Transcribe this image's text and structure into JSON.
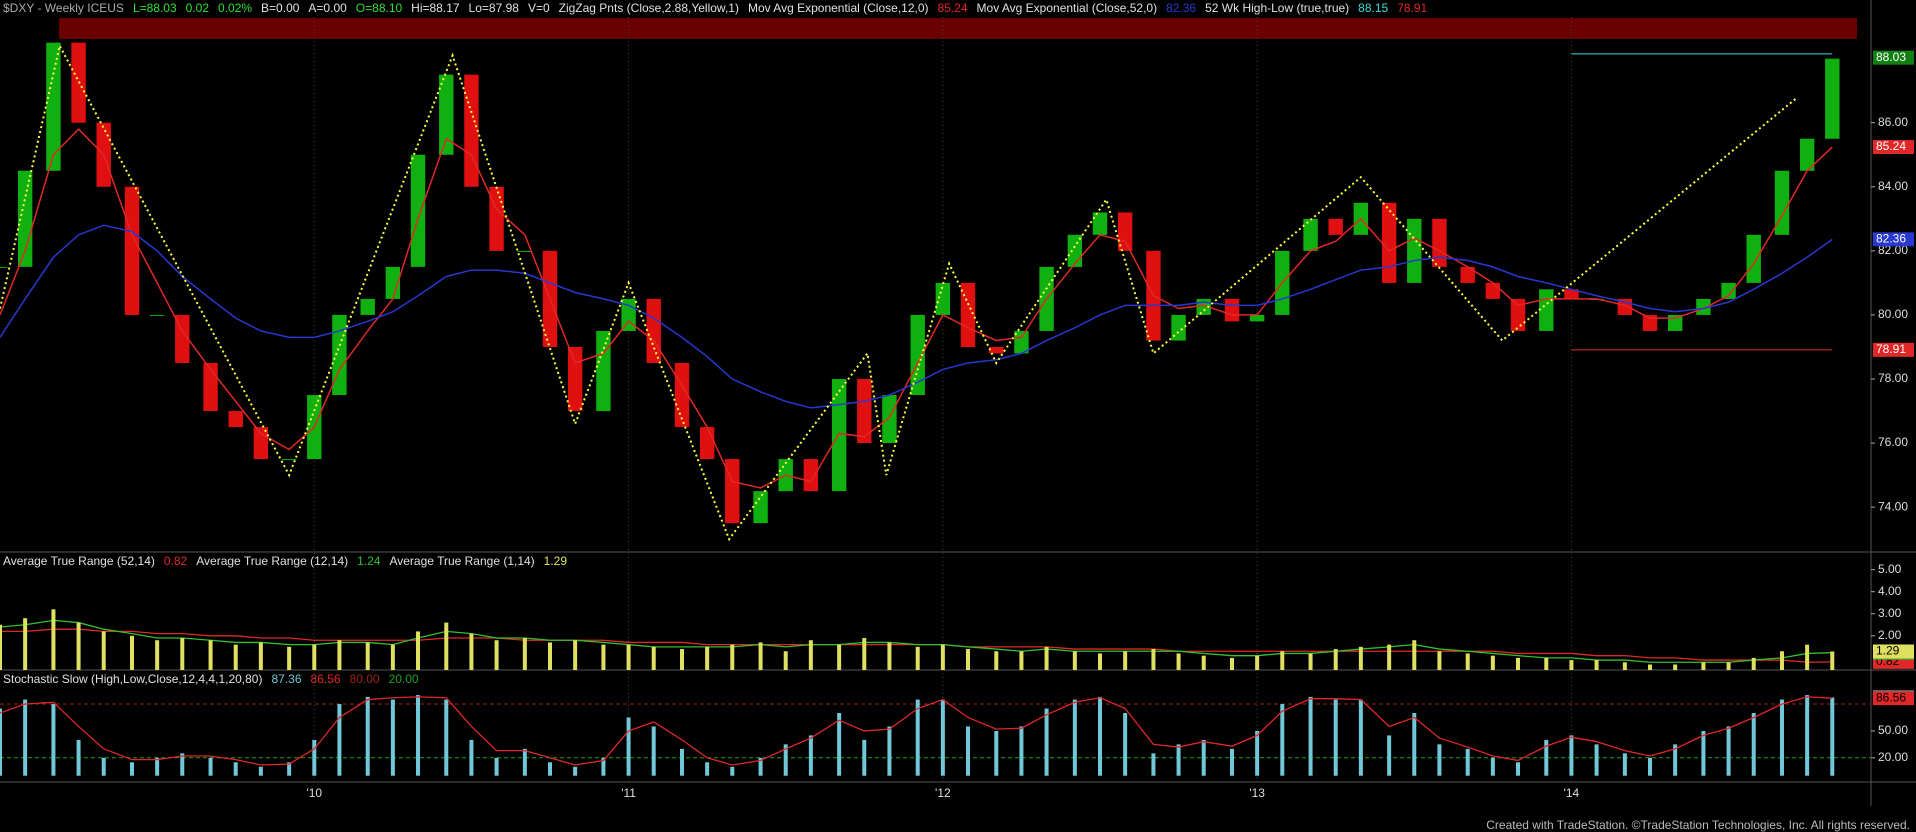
{
  "chart_data": [
    {
      "type": "candlestick",
      "title": "$DXY - Weekly ICEUS",
      "quote": [
        {
          "text": "L=88.03",
          "color": "#30e030"
        },
        {
          "text": "0.02",
          "color": "#30e030"
        },
        {
          "text": "0.02%",
          "color": "#30e030"
        },
        {
          "text": "B=0.00",
          "color": "#e0e0e0"
        },
        {
          "text": "A=0.00",
          "color": "#e0e0e0"
        },
        {
          "text": "O=88.10",
          "color": "#30e030"
        },
        {
          "text": "Hi=88.17",
          "color": "#e0e0e0"
        },
        {
          "text": "Lo=87.98",
          "color": "#e0e0e0"
        },
        {
          "text": "V=0",
          "color": "#e0e0e0"
        }
      ],
      "x": [
        2009.0,
        2009.08,
        2009.17,
        2009.25,
        2009.33,
        2009.42,
        2009.5,
        2009.58,
        2009.67,
        2009.75,
        2009.83,
        2009.92,
        2010.0,
        2010.08,
        2010.17,
        2010.25,
        2010.33,
        2010.42,
        2010.5,
        2010.58,
        2010.67,
        2010.75,
        2010.83,
        2010.92,
        2011.0,
        2011.08,
        2011.17,
        2011.25,
        2011.33,
        2011.42,
        2011.5,
        2011.58,
        2011.67,
        2011.75,
        2011.83,
        2011.92,
        2012.0,
        2012.08,
        2012.17,
        2012.25,
        2012.33,
        2012.42,
        2012.5,
        2012.58,
        2012.67,
        2012.75,
        2012.83,
        2012.92,
        2013.0,
        2013.08,
        2013.17,
        2013.25,
        2013.33,
        2013.42,
        2013.5,
        2013.58,
        2013.67,
        2013.75,
        2013.83,
        2013.92,
        2014.0,
        2014.08,
        2014.17,
        2014.25,
        2014.33,
        2014.42,
        2014.5,
        2014.58,
        2014.67,
        2014.75,
        2014.83
      ],
      "values": [
        81.5,
        84.5,
        88.5,
        86.0,
        84.0,
        80.0,
        80.0,
        78.5,
        77.0,
        76.5,
        75.5,
        75.5,
        77.5,
        80.0,
        80.5,
        81.5,
        85.0,
        87.5,
        84.0,
        82.0,
        82.0,
        79.0,
        77.0,
        79.5,
        80.5,
        78.5,
        76.5,
        75.5,
        73.5,
        74.5,
        75.5,
        74.5,
        78.0,
        76.0,
        77.5,
        80.0,
        81.0,
        79.0,
        78.8,
        79.5,
        81.5,
        82.5,
        83.2,
        82.0,
        79.2,
        80.0,
        80.5,
        79.8,
        80.0,
        82.0,
        83.0,
        82.5,
        83.5,
        81.0,
        83.0,
        81.5,
        81.0,
        80.5,
        79.5,
        80.8,
        80.5,
        80.5,
        80.0,
        79.5,
        80.0,
        80.5,
        81.0,
        82.5,
        84.5,
        85.5,
        88.0
      ],
      "last": 88.03,
      "up_color": "#10b010",
      "down_color": "#e01010",
      "zigzag": {
        "name": "ZigZag Pnts (Close,2.88,Yellow,1)",
        "color": "#ffff40",
        "x": [
          2009.0,
          2009.19,
          2009.92,
          2010.44,
          2010.83,
          2011.0,
          2011.32,
          2011.76,
          2011.82,
          2012.02,
          2012.17,
          2012.52,
          2012.67,
          2013.33,
          2013.78,
          2014.72
        ],
        "values": [
          80.2,
          88.4,
          75.0,
          88.1,
          76.6,
          81.0,
          73.0,
          78.8,
          75.0,
          81.6,
          78.5,
          83.6,
          78.8,
          84.3,
          79.2,
          86.8
        ]
      },
      "series": [
        {
          "name": "Mov Avg Exponential (Close,12,0)",
          "color": "#e02828",
          "last": 85.24,
          "values": [
            80.0,
            82.0,
            85.0,
            85.8,
            85.0,
            82.5,
            81.0,
            79.5,
            78.3,
            77.3,
            76.3,
            75.8,
            76.5,
            78.3,
            79.5,
            80.5,
            83.0,
            85.5,
            85.0,
            83.3,
            82.5,
            80.5,
            78.5,
            78.8,
            79.8,
            79.2,
            77.8,
            76.5,
            74.8,
            74.6,
            75.0,
            74.8,
            76.3,
            76.2,
            76.8,
            78.5,
            80.0,
            79.6,
            79.2,
            79.3,
            80.5,
            81.6,
            82.5,
            82.3,
            80.6,
            80.2,
            80.3,
            80.0,
            80.0,
            81.0,
            82.0,
            82.3,
            83.0,
            82.0,
            82.4,
            82.0,
            81.5,
            81.0,
            80.3,
            80.5,
            80.5,
            80.5,
            80.3,
            79.9,
            79.9,
            80.2,
            80.6,
            81.6,
            83.1,
            84.5,
            85.24
          ]
        },
        {
          "name": "Mov Avg Exponential (Close,52,0)",
          "color": "#2838d0",
          "last": 82.36,
          "values": [
            79.3,
            80.5,
            81.8,
            82.5,
            82.8,
            82.6,
            82.0,
            81.2,
            80.5,
            79.9,
            79.5,
            79.3,
            79.3,
            79.5,
            79.8,
            80.1,
            80.6,
            81.2,
            81.4,
            81.4,
            81.3,
            81.0,
            80.7,
            80.5,
            80.3,
            79.9,
            79.3,
            78.7,
            78.0,
            77.6,
            77.3,
            77.1,
            77.2,
            77.3,
            77.5,
            77.9,
            78.3,
            78.5,
            78.6,
            78.8,
            79.2,
            79.6,
            80.0,
            80.3,
            80.3,
            80.3,
            80.4,
            80.3,
            80.3,
            80.5,
            80.8,
            81.1,
            81.4,
            81.5,
            81.7,
            81.8,
            81.7,
            81.5,
            81.2,
            81.0,
            80.8,
            80.6,
            80.4,
            80.2,
            80.1,
            80.2,
            80.4,
            80.8,
            81.3,
            81.8,
            82.36
          ]
        }
      ],
      "high_low": {
        "name": "52 Wk High-Low (true,true)",
        "values": [
          88.15,
          78.91
        ],
        "colors": [
          "#40d8d8",
          "#e02828"
        ]
      },
      "xlim": [
        2009.0,
        2014.95
      ],
      "xticks": [
        {
          "value": 2010,
          "label": "'10"
        },
        {
          "value": 2011,
          "label": "'11"
        },
        {
          "value": 2012,
          "label": "'12"
        },
        {
          "value": 2013,
          "label": "'13"
        },
        {
          "value": 2014,
          "label": "'14"
        }
      ],
      "ylim": [
        72.6,
        89.3
      ],
      "yticks": [
        {
          "value": 74,
          "label": "74.00"
        },
        {
          "value": 76,
          "label": "76.00"
        },
        {
          "value": 78,
          "label": "78.00"
        },
        {
          "value": 80,
          "label": "80.00"
        },
        {
          "value": 82,
          "label": "82.00"
        },
        {
          "value": 84,
          "label": "84.00"
        },
        {
          "value": 86,
          "label": "86.00"
        }
      ]
    },
    {
      "type": "bar",
      "series": [
        {
          "name": "Average True Range (52,14)",
          "kind": "line",
          "color": "#e02828",
          "last": 0.82,
          "values": [
            2.2,
            2.2,
            2.3,
            2.3,
            2.2,
            2.2,
            2.1,
            2.1,
            2.0,
            2.0,
            1.9,
            1.9,
            1.8,
            1.8,
            1.8,
            1.8,
            1.8,
            1.9,
            1.9,
            1.9,
            1.8,
            1.8,
            1.8,
            1.8,
            1.7,
            1.7,
            1.7,
            1.6,
            1.6,
            1.6,
            1.6,
            1.6,
            1.6,
            1.6,
            1.6,
            1.6,
            1.6,
            1.5,
            1.5,
            1.5,
            1.5,
            1.4,
            1.4,
            1.4,
            1.4,
            1.3,
            1.3,
            1.3,
            1.3,
            1.3,
            1.3,
            1.3,
            1.3,
            1.3,
            1.3,
            1.3,
            1.3,
            1.3,
            1.2,
            1.2,
            1.2,
            1.1,
            1.1,
            1.0,
            1.0,
            0.9,
            0.9,
            0.9,
            0.9,
            0.8,
            0.82
          ]
        },
        {
          "name": "Average True Range (12,14)",
          "kind": "line",
          "color": "#30c030",
          "last": 1.24,
          "values": [
            2.4,
            2.5,
            2.7,
            2.6,
            2.3,
            2.1,
            1.9,
            1.9,
            1.8,
            1.7,
            1.7,
            1.6,
            1.6,
            1.7,
            1.7,
            1.6,
            1.9,
            2.2,
            2.1,
            1.9,
            1.9,
            1.8,
            1.8,
            1.7,
            1.6,
            1.5,
            1.5,
            1.5,
            1.5,
            1.6,
            1.5,
            1.6,
            1.6,
            1.7,
            1.7,
            1.6,
            1.6,
            1.5,
            1.4,
            1.3,
            1.4,
            1.3,
            1.3,
            1.3,
            1.3,
            1.3,
            1.2,
            1.1,
            1.1,
            1.2,
            1.2,
            1.3,
            1.4,
            1.5,
            1.6,
            1.4,
            1.3,
            1.2,
            1.1,
            1.0,
            1.0,
            0.9,
            0.9,
            0.8,
            0.8,
            0.8,
            0.8,
            0.9,
            1.0,
            1.2,
            1.24
          ]
        },
        {
          "name": "Average True Range (1,14)",
          "kind": "bar",
          "color": "#e0e060",
          "last": 1.29,
          "values": [
            2.5,
            2.8,
            3.2,
            2.6,
            2.2,
            2.0,
            1.8,
            1.9,
            1.8,
            1.6,
            1.7,
            1.5,
            1.6,
            1.8,
            1.7,
            1.6,
            2.2,
            2.6,
            2.1,
            1.8,
            1.9,
            1.7,
            1.8,
            1.6,
            1.6,
            1.5,
            1.4,
            1.5,
            1.6,
            1.7,
            1.3,
            1.8,
            1.6,
            1.9,
            1.7,
            1.5,
            1.6,
            1.4,
            1.3,
            1.3,
            1.5,
            1.3,
            1.2,
            1.3,
            1.4,
            1.2,
            1.1,
            1.0,
            1.1,
            1.3,
            1.2,
            1.4,
            1.5,
            1.6,
            1.8,
            1.3,
            1.2,
            1.1,
            1.0,
            1.0,
            0.9,
            0.9,
            0.8,
            0.7,
            0.7,
            0.8,
            0.8,
            1.0,
            1.3,
            1.6,
            1.29
          ]
        }
      ],
      "ylim": [
        0.45,
        5.8
      ],
      "yticks": [
        {
          "value": 2,
          "label": "2.00"
        },
        {
          "value": 3,
          "label": "3.00"
        },
        {
          "value": 4,
          "label": "4.00"
        },
        {
          "value": 5,
          "label": "5.00"
        }
      ]
    },
    {
      "type": "bar",
      "title": "Stochastic Slow (High,Low,Close,12,4,4,1,20,80)",
      "series": [
        {
          "kind": "bar",
          "color": "#70c8d8",
          "last": 87.36,
          "values": [
            75,
            85,
            80,
            40,
            20,
            15,
            20,
            25,
            20,
            15,
            10,
            15,
            40,
            80,
            88,
            85,
            90,
            85,
            40,
            20,
            30,
            15,
            10,
            20,
            65,
            55,
            30,
            15,
            10,
            20,
            35,
            45,
            70,
            40,
            55,
            85,
            85,
            55,
            50,
            55,
            75,
            85,
            88,
            70,
            25,
            35,
            40,
            30,
            50,
            80,
            88,
            85,
            85,
            45,
            70,
            35,
            30,
            20,
            15,
            40,
            45,
            35,
            25,
            20,
            35,
            50,
            55,
            70,
            85,
            90,
            87.36
          ]
        },
        {
          "kind": "line",
          "color": "#e02828",
          "last": 86.56,
          "values": [
            70,
            80,
            82,
            55,
            30,
            18,
            18,
            22,
            22,
            18,
            12,
            13,
            30,
            65,
            85,
            87,
            88,
            87,
            55,
            28,
            28,
            20,
            12,
            17,
            50,
            60,
            40,
            20,
            12,
            17,
            30,
            42,
            62,
            50,
            52,
            75,
            85,
            65,
            52,
            53,
            68,
            82,
            87,
            75,
            35,
            32,
            38,
            33,
            45,
            72,
            86,
            86,
            85,
            55,
            65,
            42,
            32,
            22,
            17,
            33,
            43,
            38,
            28,
            22,
            30,
            45,
            53,
            65,
            80,
            88,
            86.56
          ]
        }
      ],
      "levels": [
        {
          "value": 80,
          "label": "80.00",
          "color": "#a02020"
        },
        {
          "value": 20,
          "label": "20.00",
          "color": "#20a020"
        }
      ],
      "ylim": [
        -7,
        118
      ],
      "yticks": [
        {
          "value": 20,
          "label": "20.00"
        },
        {
          "value": 50,
          "label": "50.00"
        }
      ]
    }
  ],
  "footer": "Created with TradeStation. ©TradeStation Technologies, Inc. All rights reserved."
}
